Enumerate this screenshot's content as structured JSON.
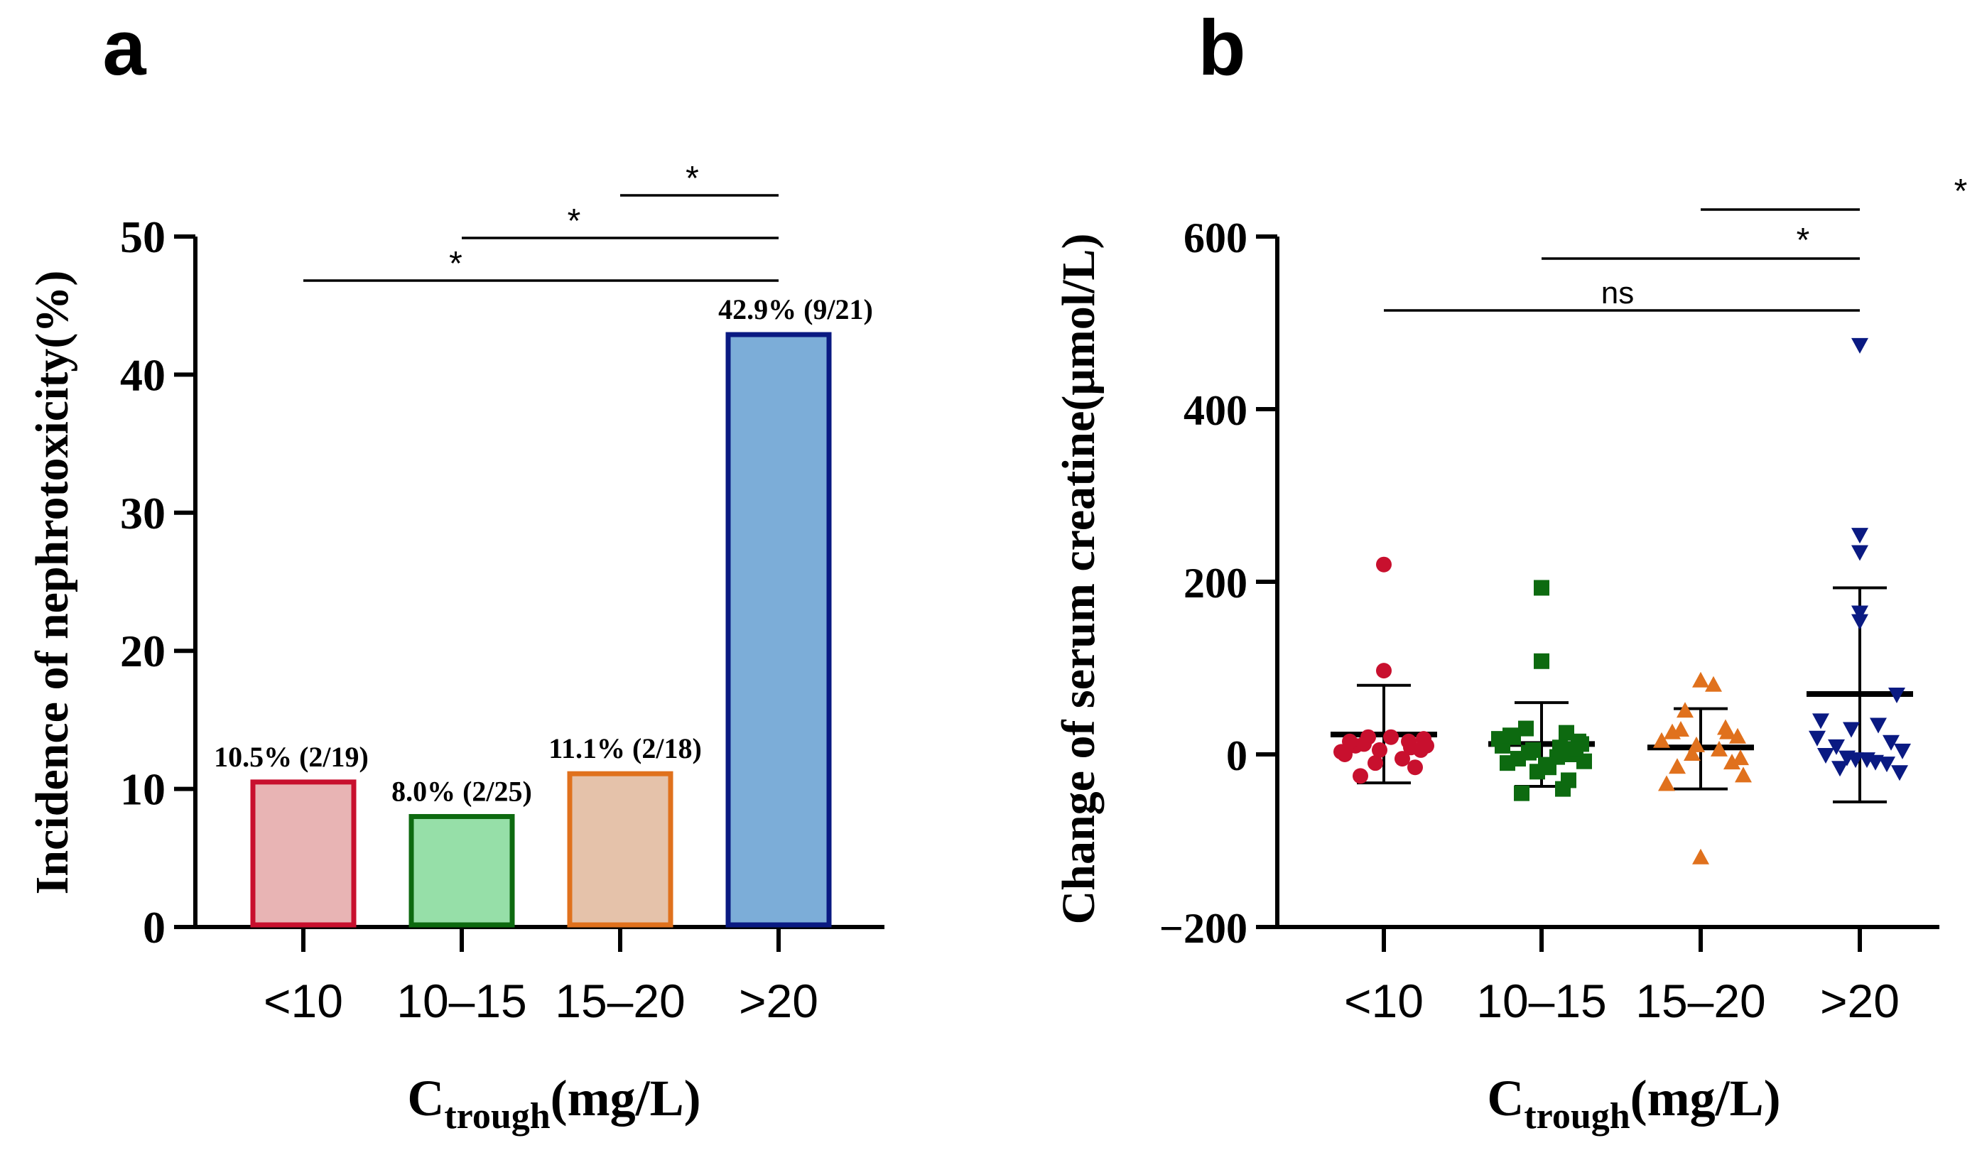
{
  "chart_data": [
    {
      "panel_label": "a",
      "type": "bar",
      "ylabel": "Incidence of nephrotoxicity(%)",
      "xlabel_main": "C",
      "xlabel_sub": "trough",
      "xlabel_unit": "(mg/L)",
      "ylim": [
        0,
        50
      ],
      "yticks": [
        "0",
        "10",
        "20",
        "30",
        "40",
        "50"
      ],
      "categories": [
        "<10",
        "10–15",
        "15–20",
        ">20"
      ],
      "values": [
        10.5,
        8.0,
        11.1,
        42.9
      ],
      "bar_labels": [
        "10.5% (2/19)",
        "8.0% (2/25)",
        "11.1% (2/18)",
        "42.9% (9/21)"
      ],
      "bar_fill": [
        "#e8b4b4",
        "#96dfa8",
        "#e5c2aa",
        "#7cadd8"
      ],
      "bar_stroke": [
        "#c8102e",
        "#0d6a10",
        "#e0711d",
        "#0a1a82"
      ],
      "comparisons": [
        {
          "from": 0,
          "to": 3,
          "label": "*"
        },
        {
          "from": 1,
          "to": 3,
          "label": "*"
        },
        {
          "from": 2,
          "to": 3,
          "label": "*"
        }
      ]
    },
    {
      "panel_label": "b",
      "type": "scatter",
      "ylabel": "Change of serum creatine(μmol/L)",
      "xlabel_main": "C",
      "xlabel_sub": "trough",
      "xlabel_unit": "(mg/L)",
      "ylim": [
        -200,
        600
      ],
      "yticks": [
        "−200",
        "0",
        "200",
        "400",
        "600"
      ],
      "categories": [
        "<10",
        "10–15",
        "15–20",
        ">20"
      ],
      "series": [
        {
          "name": "<10",
          "marker": "circle",
          "color": "#c8102e",
          "values": [
            220,
            97,
            20,
            15,
            10,
            5,
            0,
            -5,
            -10,
            -15,
            -25,
            10,
            15,
            20,
            5,
            8,
            12,
            18,
            3
          ],
          "mean": 23,
          "sd_low": -33,
          "sd_high": 80
        },
        {
          "name": "10–15",
          "marker": "square",
          "color": "#0d6a10",
          "values": [
            193,
            108,
            30,
            25,
            20,
            15,
            10,
            8,
            5,
            0,
            -5,
            -8,
            -10,
            -15,
            -20,
            -30,
            -45,
            12,
            18,
            -3,
            2,
            6,
            22,
            -12,
            -40
          ],
          "mean": 12,
          "sd_low": -37,
          "sd_high": 60
        },
        {
          "name": "15–20",
          "marker": "triangle-up",
          "color": "#e0711d",
          "values": [
            85,
            80,
            50,
            30,
            25,
            20,
            15,
            5,
            0,
            -10,
            -15,
            -25,
            -35,
            -120,
            10,
            25,
            28,
            -5
          ],
          "mean": 8,
          "sd_low": -40,
          "sd_high": 53
        },
        {
          "name": ">20",
          "marker": "triangle-down",
          "color": "#0a1a82",
          "values": [
            475,
            255,
            235,
            165,
            155,
            70,
            40,
            35,
            30,
            15,
            10,
            5,
            0,
            -5,
            -5,
            -10,
            -15,
            -20,
            20,
            -8,
            -3
          ],
          "mean": 70,
          "sd_low": -55,
          "sd_high": 193
        }
      ],
      "comparisons": [
        {
          "from": 0,
          "to": 3,
          "label": "ns"
        },
        {
          "from": 1,
          "to": 3,
          "label": "*"
        },
        {
          "from": 2,
          "to": 3,
          "label": "*"
        }
      ]
    }
  ]
}
